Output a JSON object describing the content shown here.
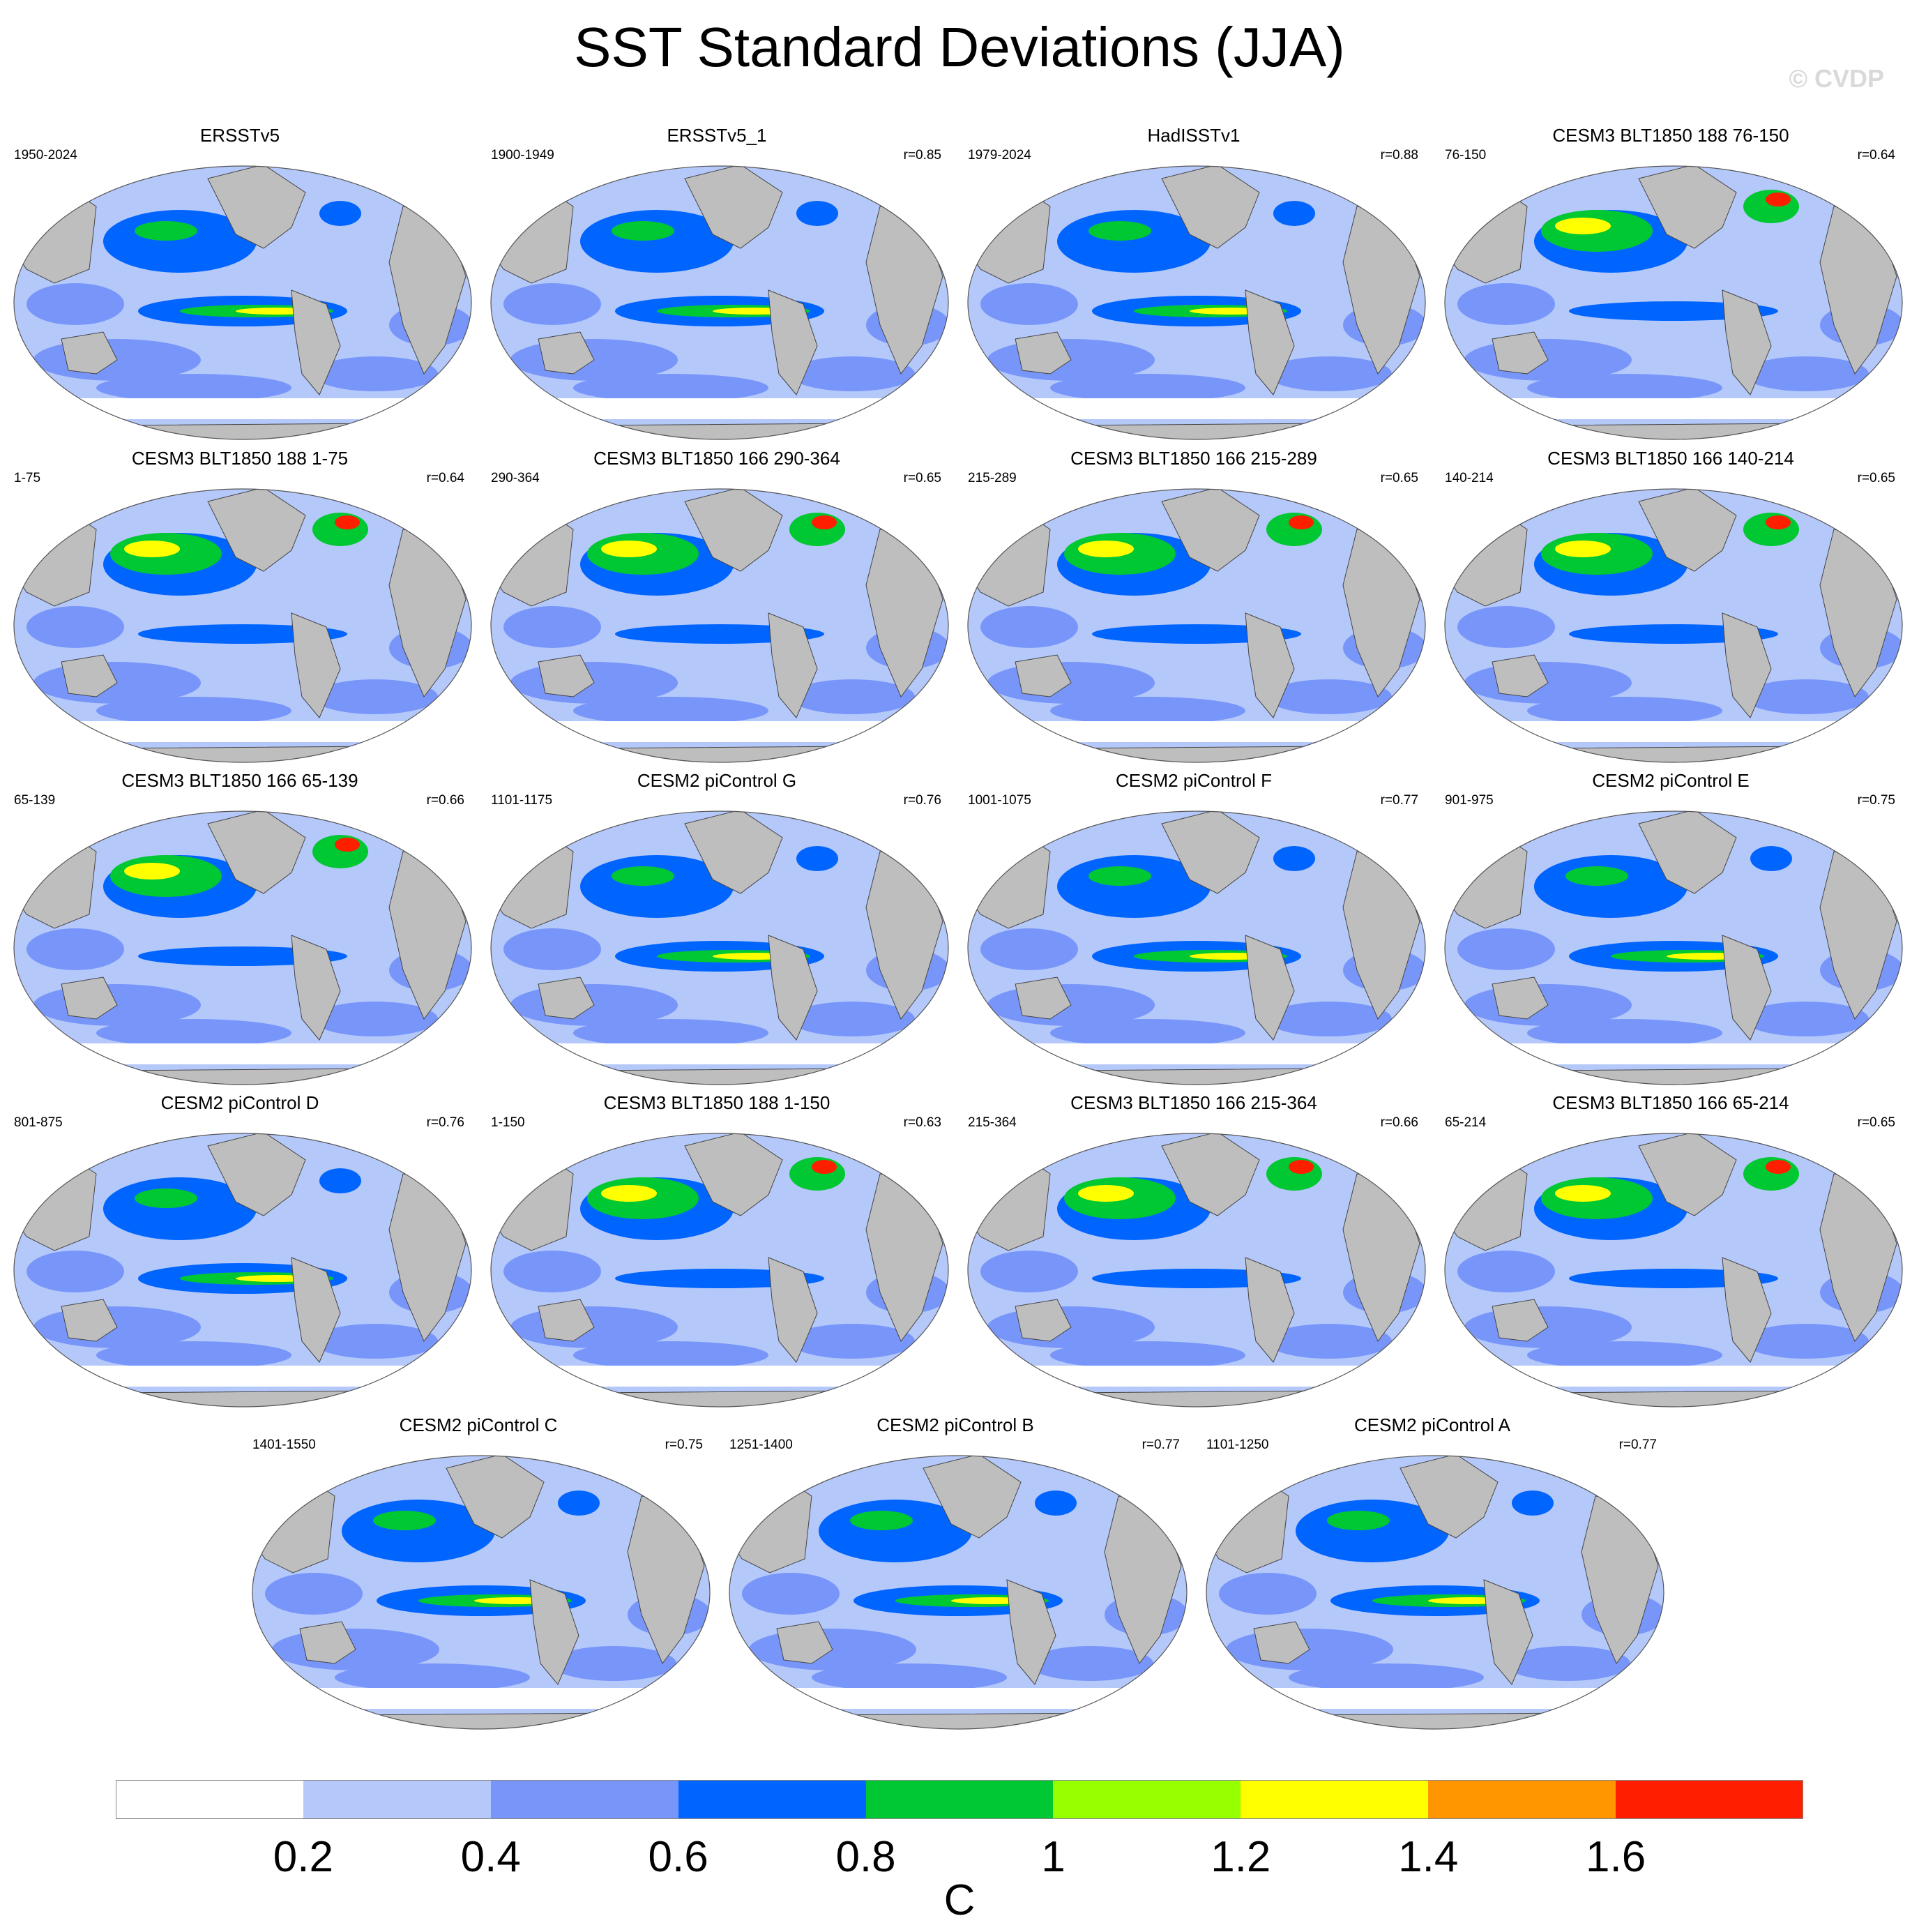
{
  "title": "SST Standard Deviations (JJA)",
  "watermark": "© CVDP",
  "panels": [
    {
      "title": "ERSSTv5",
      "period": "1950-2024",
      "corr": ""
    },
    {
      "title": "ERSSTv5_1",
      "period": "1900-1949",
      "corr": "r=0.85"
    },
    {
      "title": "HadISSTv1",
      "period": "1979-2024",
      "corr": "r=0.88"
    },
    {
      "title": "CESM3 BLT1850 188 76-150",
      "period": "76-150",
      "corr": "r=0.64"
    },
    {
      "title": "CESM3 BLT1850 188 1-75",
      "period": "1-75",
      "corr": "r=0.64"
    },
    {
      "title": "CESM3 BLT1850 166 290-364",
      "period": "290-364",
      "corr": "r=0.65"
    },
    {
      "title": "CESM3 BLT1850 166 215-289",
      "period": "215-289",
      "corr": "r=0.65"
    },
    {
      "title": "CESM3 BLT1850 166 140-214",
      "period": "140-214",
      "corr": "r=0.65"
    },
    {
      "title": "CESM3 BLT1850 166 65-139",
      "period": "65-139",
      "corr": "r=0.66"
    },
    {
      "title": "CESM2 piControl G",
      "period": "1101-1175",
      "corr": "r=0.76"
    },
    {
      "title": "CESM2 piControl F",
      "period": "1001-1075",
      "corr": "r=0.77"
    },
    {
      "title": "CESM2 piControl E",
      "period": "901-975",
      "corr": "r=0.75"
    },
    {
      "title": "CESM2 piControl D",
      "period": "801-875",
      "corr": "r=0.76"
    },
    {
      "title": "CESM3 BLT1850 188 1-150",
      "period": "1-150",
      "corr": "r=0.63"
    },
    {
      "title": "CESM3 BLT1850 166 215-364",
      "period": "215-364",
      "corr": "r=0.66"
    },
    {
      "title": "CESM3 BLT1850 166 65-214",
      "period": "65-214",
      "corr": "r=0.65"
    },
    {
      "title": "CESM2 piControl C",
      "period": "1401-1550",
      "corr": "r=0.75"
    },
    {
      "title": "CESM2 piControl B",
      "period": "1251-1400",
      "corr": "r=0.77"
    },
    {
      "title": "CESM2 piControl A",
      "period": "1101-1250",
      "corr": "r=0.77"
    }
  ],
  "colorbar": {
    "unit": "C",
    "ticks": [
      "0.2",
      "0.4",
      "0.6",
      "0.8",
      "1",
      "1.2",
      "1.4",
      "1.6"
    ],
    "colors": [
      "#ffffff",
      "#b4c8fa",
      "#7896fa",
      "#0064ff",
      "#00c832",
      "#96ff00",
      "#ffff00",
      "#ff9600",
      "#ff1e00"
    ]
  },
  "map_colors": {
    "ocean_low": "#b4c8fa",
    "land": "#bebebe",
    "ice": "#ffffff"
  }
}
